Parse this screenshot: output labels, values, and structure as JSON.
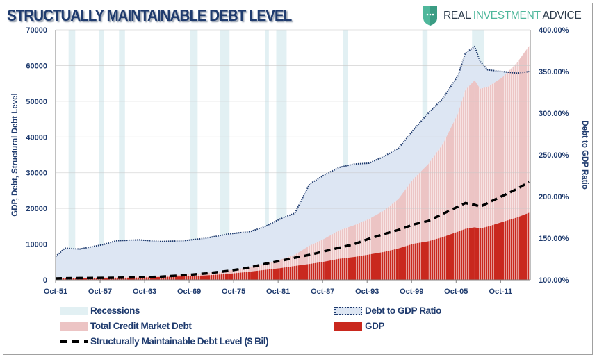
{
  "title": "STRUCTUALLY MAINTAINABLE DEBT LEVEL",
  "logo": {
    "part1": "REAL ",
    "part2": "INVESTMENT",
    "part3": " ADVICE"
  },
  "colors": {
    "gdp": "#c9281e",
    "debt": "#ecc4c4",
    "ratio_fill": "#dde6f3",
    "ratio_line": "#1f3b6e",
    "recession": "#e2f0f3",
    "smdl": "#000000",
    "text": "#1f3b6e"
  },
  "chart_data": {
    "type": "bar",
    "title": "STRUCTUALLY MAINTAINABLE DEBT LEVEL",
    "ylabel": "GDP, Debt, Structural Debt Level",
    "y2label": "Debt to GDP Ratio",
    "ylim": [
      0,
      70000
    ],
    "y2lim": [
      100,
      400
    ],
    "yticks": [
      "0",
      "10000",
      "20000",
      "30000",
      "40000",
      "50000",
      "60000",
      "70000"
    ],
    "y2ticks": [
      "100.00%",
      "150.00%",
      "200.00%",
      "250.00%",
      "300.00%",
      "350.00%",
      "400.00%"
    ],
    "xlim": [
      1951.75,
      2015.75
    ],
    "xticks": [
      {
        "label": "Oct-51",
        "year": 1951.75
      },
      {
        "label": "Oct-57",
        "year": 1957.75
      },
      {
        "label": "Oct-63",
        "year": 1963.75
      },
      {
        "label": "Oct-69",
        "year": 1969.75
      },
      {
        "label": "Oct-75",
        "year": 1975.75
      },
      {
        "label": "Oct-81",
        "year": 1981.75
      },
      {
        "label": "Oct-87",
        "year": 1987.75
      },
      {
        "label": "Oct-93",
        "year": 1993.75
      },
      {
        "label": "Oct-99",
        "year": 1999.75
      },
      {
        "label": "Oct-05",
        "year": 2005.75
      },
      {
        "label": "Oct-11",
        "year": 2011.75
      }
    ],
    "grid": "horizontal",
    "legend_placement": "bottom",
    "x": [
      1951.75,
      1953,
      1955,
      1958,
      1960,
      1963,
      1966,
      1969,
      1972,
      1975,
      1978,
      1980,
      1982,
      1984,
      1986,
      1988,
      1990,
      1992,
      1994,
      1996,
      1998,
      2000,
      2002,
      2004,
      2006,
      2007,
      2008.25,
      2009,
      2010,
      2012,
      2014,
      2015.6
    ],
    "series": [
      {
        "name": "Total Credit Market Debt",
        "type": "bar",
        "axis": "left",
        "values": [
          448,
          524,
          575,
          667,
          779,
          918,
          1153,
          1441,
          1875,
          2558,
          3634,
          4592,
          5623,
          7020,
          9568,
          11526,
          13865,
          15296,
          17040,
          19344,
          22704,
          28280,
          32400,
          38160,
          46575,
          53196,
          55860,
          53500,
          54000,
          56700,
          60900,
          65500
        ]
      },
      {
        "name": "GDP",
        "type": "bar",
        "axis": "left",
        "values": [
          350,
          380,
          420,
          470,
          530,
          620,
          790,
          980,
          1250,
          1650,
          2300,
          2800,
          3250,
          3900,
          4450,
          5100,
          5900,
          6400,
          7100,
          7800,
          8800,
          10100,
          10800,
          12000,
          13500,
          14300,
          14700,
          14400,
          14900,
          16200,
          17500,
          18800
        ]
      },
      {
        "name": "Structurally Maintainable Debt Level ($ Bil)",
        "type": "line",
        "axis": "left",
        "values": [
          400,
          450,
          500,
          550,
          600,
          700,
          900,
          1300,
          1800,
          2500,
          3500,
          4500,
          5300,
          6200,
          7000,
          8000,
          9000,
          10000,
          11500,
          12800,
          14000,
          15500,
          16500,
          18500,
          20500,
          21500,
          21000,
          20500,
          21500,
          23500,
          25500,
          27400
        ]
      },
      {
        "name": "Debt to GDP Ratio",
        "type": "area",
        "axis": "right",
        "values": [
          128,
          138,
          137,
          142,
          147,
          148,
          146,
          147,
          150,
          155,
          158,
          164,
          173,
          180,
          215,
          226,
          235,
          239,
          240,
          248,
          258,
          280,
          300,
          318,
          345,
          372,
          380,
          362,
          352,
          350,
          348,
          350
        ]
      }
    ],
    "recessions": [
      [
        1953.5,
        1954.4
      ],
      [
        1957.6,
        1958.3
      ],
      [
        1960.3,
        1961.1
      ],
      [
        1969.9,
        1970.9
      ],
      [
        1973.9,
        1975.2
      ],
      [
        1980.0,
        1980.5
      ],
      [
        1981.5,
        1982.9
      ],
      [
        1990.5,
        1991.2
      ],
      [
        2001.2,
        2001.9
      ],
      [
        2007.9,
        2009.5
      ]
    ]
  },
  "legend": {
    "recessions": "Recessions",
    "ratio": "Debt to GDP Ratio",
    "debt": "Total Credit Market Debt",
    "gdp": "GDP",
    "smdl": "Structurally Maintainable Debt Level ($ Bil)"
  }
}
